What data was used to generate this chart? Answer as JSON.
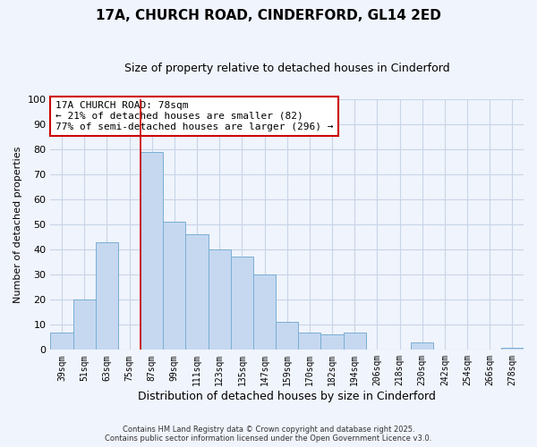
{
  "title": "17A, CHURCH ROAD, CINDERFORD, GL14 2ED",
  "subtitle": "Size of property relative to detached houses in Cinderford",
  "xlabel": "Distribution of detached houses by size in Cinderford",
  "ylabel": "Number of detached properties",
  "categories": [
    "39sqm",
    "51sqm",
    "63sqm",
    "75sqm",
    "87sqm",
    "99sqm",
    "111sqm",
    "123sqm",
    "135sqm",
    "147sqm",
    "159sqm",
    "170sqm",
    "182sqm",
    "194sqm",
    "206sqm",
    "218sqm",
    "230sqm",
    "242sqm",
    "254sqm",
    "266sqm",
    "278sqm"
  ],
  "values": [
    7,
    20,
    43,
    0,
    79,
    51,
    46,
    40,
    37,
    30,
    11,
    7,
    6,
    7,
    0,
    0,
    3,
    0,
    0,
    0,
    1
  ],
  "bar_color": "#c5d8f0",
  "bar_edge_color": "#7aaed4",
  "vline_x_index": 3.5,
  "vline_color": "#cc0000",
  "ylim": [
    0,
    100
  ],
  "annotation_line1": "17A CHURCH ROAD: 78sqm",
  "annotation_line2": "← 21% of detached houses are smaller (82)",
  "annotation_line3": "77% of semi-detached houses are larger (296) →",
  "footer_line1": "Contains HM Land Registry data © Crown copyright and database right 2025.",
  "footer_line2": "Contains public sector information licensed under the Open Government Licence v3.0.",
  "bg_color": "#f0f4fc",
  "grid_color": "#c8d4e8"
}
